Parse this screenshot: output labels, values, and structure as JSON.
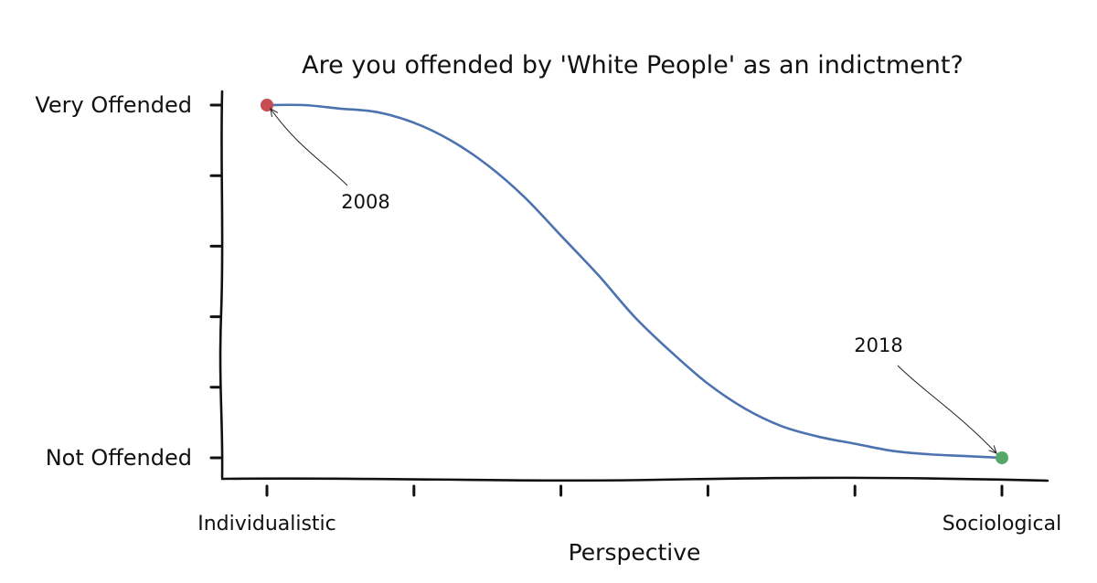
{
  "chart_data": {
    "type": "line",
    "title": "Are you offended by 'White People' as an indictment?",
    "xlabel": "Perspective",
    "ylabel": "",
    "x_tick_labels": [
      "Individualistic",
      "",
      "",
      "",
      "",
      "Sociological"
    ],
    "y_tick_labels": [
      "Not Offended",
      "",
      "",
      "",
      "",
      "Very Offended"
    ],
    "xlim": [
      0,
      1
    ],
    "ylim": [
      0,
      1
    ],
    "grid": false,
    "series": [
      {
        "color": "#4c72b0",
        "x": [
          0.0,
          0.05,
          0.1,
          0.15,
          0.2,
          0.25,
          0.3,
          0.35,
          0.4,
          0.45,
          0.5,
          0.55,
          0.6,
          0.65,
          0.7,
          0.75,
          0.8,
          0.85,
          0.9,
          0.95,
          1.0
        ],
        "y": [
          1.0,
          1.0,
          0.99,
          0.98,
          0.95,
          0.9,
          0.83,
          0.74,
          0.63,
          0.52,
          0.4,
          0.3,
          0.21,
          0.14,
          0.09,
          0.06,
          0.04,
          0.02,
          0.01,
          0.005,
          0.0
        ]
      }
    ],
    "annotations": [
      {
        "text": "2008",
        "x": 0.0,
        "y": 1.0,
        "color": "#c44e52"
      },
      {
        "text": "2018",
        "x": 1.0,
        "y": 0.0,
        "color": "#55a868"
      }
    ]
  }
}
